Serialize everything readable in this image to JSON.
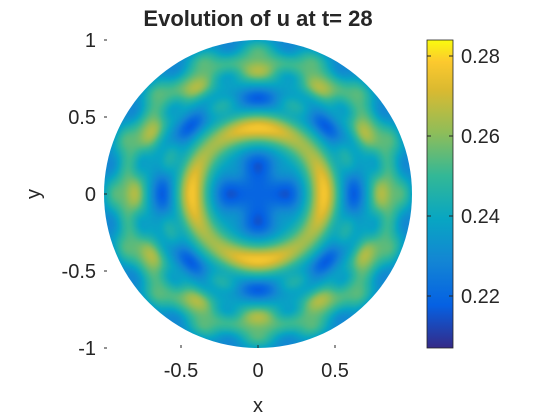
{
  "chart_data": {
    "type": "heatmap",
    "title": "Evolution of u at t= 28",
    "xlabel": "x",
    "ylabel": "y",
    "xlim": [
      -1,
      1
    ],
    "ylim": [
      -1,
      1
    ],
    "x_ticks": [
      {
        "value": -0.5,
        "label": "-0.5"
      },
      {
        "value": 0,
        "label": "0"
      },
      {
        "value": 0.5,
        "label": "0.5"
      }
    ],
    "y_ticks": [
      {
        "value": 1,
        "label": "1"
      },
      {
        "value": 0.5,
        "label": "0.5"
      },
      {
        "value": 0,
        "label": "0"
      },
      {
        "value": -0.5,
        "label": "-0.5"
      },
      {
        "value": -1,
        "label": "-1"
      }
    ],
    "domain": "unit disk",
    "grid": false,
    "colormap": "parula",
    "colorbar": {
      "range": [
        0.207,
        0.284
      ],
      "ticks": [
        {
          "value": 0.22,
          "label": "0.22"
        },
        {
          "value": 0.24,
          "label": "0.24"
        },
        {
          "value": 0.26,
          "label": "0.26"
        },
        {
          "value": 0.28,
          "label": "0.28"
        }
      ]
    },
    "field_features": [
      {
        "feature": "minimum",
        "x": 0.0,
        "y": 0.0,
        "value": 0.207
      },
      {
        "feature": "peak",
        "x": -0.1,
        "y": 0.42,
        "value": 0.282
      },
      {
        "feature": "peak",
        "x": 0.1,
        "y": 0.42,
        "value": 0.282
      },
      {
        "feature": "peak",
        "x": -0.1,
        "y": -0.42,
        "value": 0.282
      },
      {
        "feature": "peak",
        "x": 0.1,
        "y": -0.42,
        "value": 0.282
      },
      {
        "feature": "peak",
        "x": -0.45,
        "y": 0.1,
        "value": 0.278
      },
      {
        "feature": "peak",
        "x": -0.45,
        "y": -0.1,
        "value": 0.278
      },
      {
        "feature": "peak",
        "x": 0.45,
        "y": 0.1,
        "value": 0.278
      },
      {
        "feature": "peak",
        "x": 0.45,
        "y": -0.1,
        "value": 0.278
      }
    ]
  }
}
